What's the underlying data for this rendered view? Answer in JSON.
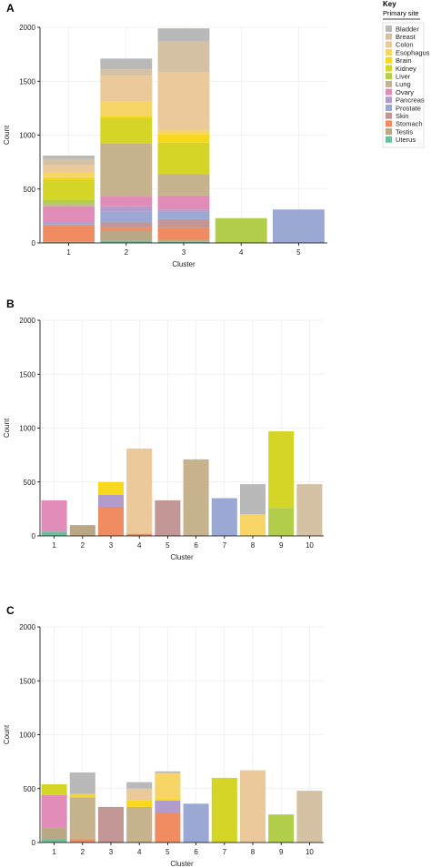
{
  "legend": {
    "title": "Key",
    "subtitle": "Primary site",
    "items": [
      {
        "name": "Bladder",
        "color": "#b9b9b9"
      },
      {
        "name": "Breast",
        "color": "#d5c1a4"
      },
      {
        "name": "Colon",
        "color": "#ebc99a"
      },
      {
        "name": "Esophagus",
        "color": "#f6d566"
      },
      {
        "name": "Brain",
        "color": "#f8d81c"
      },
      {
        "name": "Kidney",
        "color": "#d4d527"
      },
      {
        "name": "Liver",
        "color": "#b1cd4a"
      },
      {
        "name": "Lung",
        "color": "#c6b28c"
      },
      {
        "name": "Ovary",
        "color": "#e08bb8"
      },
      {
        "name": "Pancreas",
        "color": "#b29ccb"
      },
      {
        "name": "Prostate",
        "color": "#9aa8d3"
      },
      {
        "name": "Skin",
        "color": "#c39796"
      },
      {
        "name": "Stomach",
        "color": "#f08c62"
      },
      {
        "name": "Testis",
        "color": "#b9a785"
      },
      {
        "name": "Uterus",
        "color": "#6cbf9d"
      }
    ]
  },
  "chart_data": [
    {
      "type": "bar",
      "stacked": true,
      "panel_label": "A",
      "xlabel": "Cluster",
      "ylabel": "Count",
      "ylim": [
        0,
        2000
      ],
      "yticks": [
        0,
        500,
        1000,
        1500,
        2000
      ],
      "categories": [
        "1",
        "2",
        "3",
        "4",
        "5"
      ],
      "series": [
        {
          "name": "Uterus",
          "values": [
            0,
            20,
            10,
            0,
            0
          ]
        },
        {
          "name": "Testis",
          "values": [
            10,
            90,
            20,
            0,
            0
          ]
        },
        {
          "name": "Stomach",
          "values": [
            150,
            30,
            110,
            0,
            0
          ]
        },
        {
          "name": "Skin",
          "values": [
            10,
            50,
            80,
            0,
            0
          ]
        },
        {
          "name": "Prostate",
          "values": [
            20,
            100,
            70,
            0,
            310
          ]
        },
        {
          "name": "Pancreas",
          "values": [
            0,
            50,
            20,
            0,
            0
          ]
        },
        {
          "name": "Ovary",
          "values": [
            150,
            90,
            130,
            0,
            0
          ]
        },
        {
          "name": "Lung",
          "values": [
            20,
            490,
            200,
            0,
            0
          ]
        },
        {
          "name": "Liver",
          "values": [
            40,
            0,
            0,
            230,
            0
          ]
        },
        {
          "name": "Kidney",
          "values": [
            190,
            240,
            290,
            0,
            0
          ]
        },
        {
          "name": "Brain",
          "values": [
            20,
            20,
            80,
            0,
            0
          ]
        },
        {
          "name": "Esophagus",
          "values": [
            40,
            130,
            40,
            0,
            0
          ]
        },
        {
          "name": "Colon",
          "values": [
            70,
            240,
            530,
            0,
            0
          ]
        },
        {
          "name": "Breast",
          "values": [
            60,
            60,
            290,
            0,
            0
          ]
        },
        {
          "name": "Bladder",
          "values": [
            30,
            100,
            120,
            0,
            0
          ]
        }
      ]
    },
    {
      "type": "bar",
      "stacked": true,
      "panel_label": "B",
      "xlabel": "Cluster",
      "ylabel": "Count",
      "ylim": [
        0,
        2000
      ],
      "yticks": [
        0,
        500,
        1000,
        1500,
        2000
      ],
      "categories": [
        "1",
        "2",
        "3",
        "4",
        "5",
        "6",
        "7",
        "8",
        "9",
        "10"
      ],
      "series": [
        {
          "name": "Uterus",
          "values": [
            40,
            0,
            0,
            0,
            0,
            0,
            0,
            0,
            0,
            0
          ]
        },
        {
          "name": "Testis",
          "values": [
            0,
            100,
            0,
            0,
            0,
            0,
            0,
            0,
            0,
            0
          ]
        },
        {
          "name": "Stomach",
          "values": [
            0,
            0,
            270,
            20,
            0,
            0,
            0,
            0,
            0,
            0
          ]
        },
        {
          "name": "Skin",
          "values": [
            0,
            0,
            0,
            0,
            330,
            0,
            0,
            0,
            0,
            0
          ]
        },
        {
          "name": "Prostate",
          "values": [
            0,
            0,
            0,
            0,
            0,
            0,
            350,
            0,
            0,
            0
          ]
        },
        {
          "name": "Pancreas",
          "values": [
            0,
            0,
            110,
            0,
            0,
            0,
            0,
            0,
            0,
            0
          ]
        },
        {
          "name": "Ovary",
          "values": [
            290,
            0,
            0,
            0,
            0,
            0,
            0,
            0,
            0,
            0
          ]
        },
        {
          "name": "Lung",
          "values": [
            0,
            0,
            0,
            0,
            0,
            710,
            0,
            0,
            0,
            0
          ]
        },
        {
          "name": "Liver",
          "values": [
            0,
            0,
            0,
            0,
            0,
            0,
            0,
            0,
            260,
            0
          ]
        },
        {
          "name": "Kidney",
          "values": [
            0,
            0,
            0,
            0,
            0,
            0,
            0,
            0,
            710,
            0
          ]
        },
        {
          "name": "Brain",
          "values": [
            0,
            0,
            120,
            0,
            0,
            0,
            0,
            0,
            0,
            0
          ]
        },
        {
          "name": "Esophagus",
          "values": [
            0,
            0,
            0,
            0,
            0,
            0,
            0,
            200,
            0,
            0
          ]
        },
        {
          "name": "Colon",
          "values": [
            0,
            0,
            0,
            790,
            0,
            0,
            0,
            0,
            0,
            0
          ]
        },
        {
          "name": "Breast",
          "values": [
            0,
            0,
            0,
            0,
            0,
            0,
            0,
            0,
            0,
            480
          ]
        },
        {
          "name": "Bladder",
          "values": [
            0,
            0,
            0,
            0,
            0,
            0,
            0,
            280,
            0,
            0
          ]
        }
      ]
    },
    {
      "type": "bar",
      "stacked": true,
      "panel_label": "C",
      "xlabel": "Cluster",
      "ylabel": "Count",
      "ylim": [
        0,
        2000
      ],
      "yticks": [
        0,
        500,
        1000,
        1500,
        2000
      ],
      "categories": [
        "1",
        "2",
        "3",
        "4",
        "5",
        "6",
        "7",
        "8",
        "9",
        "10"
      ],
      "series": [
        {
          "name": "Uterus",
          "values": [
            30,
            0,
            0,
            0,
            0,
            0,
            0,
            0,
            0,
            0
          ]
        },
        {
          "name": "Testis",
          "values": [
            110,
            0,
            0,
            0,
            0,
            0,
            0,
            0,
            0,
            0
          ]
        },
        {
          "name": "Stomach",
          "values": [
            0,
            30,
            0,
            0,
            270,
            0,
            0,
            0,
            0,
            0
          ]
        },
        {
          "name": "Skin",
          "values": [
            0,
            0,
            330,
            0,
            0,
            0,
            0,
            0,
            0,
            0
          ]
        },
        {
          "name": "Prostate",
          "values": [
            0,
            0,
            0,
            0,
            0,
            360,
            0,
            0,
            0,
            0
          ]
        },
        {
          "name": "Pancreas",
          "values": [
            0,
            0,
            0,
            0,
            120,
            0,
            0,
            0,
            0,
            0
          ]
        },
        {
          "name": "Ovary",
          "values": [
            300,
            0,
            0,
            0,
            0,
            0,
            0,
            0,
            0,
            0
          ]
        },
        {
          "name": "Lung",
          "values": [
            0,
            390,
            0,
            330,
            0,
            0,
            0,
            0,
            0,
            0
          ]
        },
        {
          "name": "Liver",
          "values": [
            0,
            0,
            0,
            0,
            0,
            0,
            0,
            0,
            260,
            0
          ]
        },
        {
          "name": "Kidney",
          "values": [
            100,
            0,
            0,
            0,
            0,
            0,
            600,
            0,
            0,
            0
          ]
        },
        {
          "name": "Brain",
          "values": [
            0,
            30,
            0,
            60,
            20,
            0,
            0,
            0,
            0,
            0
          ]
        },
        {
          "name": "Esophagus",
          "values": [
            0,
            0,
            0,
            0,
            230,
            0,
            0,
            0,
            0,
            0
          ]
        },
        {
          "name": "Colon",
          "values": [
            0,
            0,
            0,
            110,
            0,
            0,
            0,
            670,
            0,
            0
          ]
        },
        {
          "name": "Breast",
          "values": [
            0,
            0,
            0,
            0,
            10,
            0,
            0,
            0,
            0,
            480
          ]
        },
        {
          "name": "Bladder",
          "values": [
            0,
            200,
            0,
            60,
            10,
            0,
            0,
            0,
            0,
            0
          ]
        }
      ]
    }
  ]
}
